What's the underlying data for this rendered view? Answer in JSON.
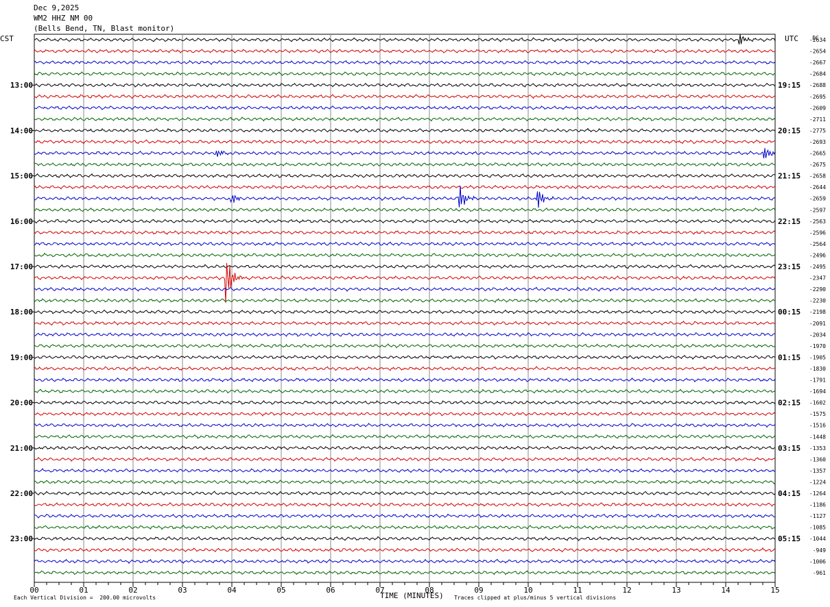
{
  "header": {
    "date": "Dec 9,2025",
    "station": "WM2 HHZ NM 00",
    "location": "(Bells Bend, TN, Blast monitor)"
  },
  "chart_data": {
    "type": "helicorder",
    "left_timezone": "CST",
    "right_timezone": "UTC",
    "right_corner_label": "DC",
    "xlabel": "TIME (MINUTES)",
    "x_ticks": [
      "00",
      "01",
      "02",
      "03",
      "04",
      "05",
      "06",
      "07",
      "08",
      "09",
      "10",
      "11",
      "12",
      "13",
      "14",
      "15"
    ],
    "xlim": [
      0,
      15
    ],
    "left_hour_labels": [
      "13:00",
      "14:00",
      "15:00",
      "16:00",
      "17:00",
      "18:00",
      "19:00",
      "20:00",
      "21:00",
      "22:00",
      "23:00"
    ],
    "right_hour_labels": [
      "19:15",
      "20:15",
      "21:15",
      "22:15",
      "23:15",
      "00:15",
      "01:15",
      "02:15",
      "03:15",
      "04:15",
      "05:15"
    ],
    "trace_colors": [
      "#000000",
      "#d40000",
      "#0000cc",
      "#006400"
    ],
    "trace_count": 48,
    "dc_offsets": [
      "-2634",
      "-2654",
      "-2667",
      "-2684",
      "-2688",
      "-2695",
      "-2609",
      "-2711",
      "-2775",
      "-2693",
      "-2665",
      "-2675",
      "-2658",
      "-2644",
      "-2659",
      "-2597",
      "-2563",
      "-2596",
      "-2564",
      "-2496",
      "-2495",
      "-2347",
      "-2290",
      "-2230",
      "-2198",
      "-2091",
      "-2034",
      "-1970",
      "-1905",
      "-1830",
      "-1791",
      "-1694",
      "-1602",
      "-1575",
      "-1516",
      "-1448",
      "-1353",
      "-1360",
      "-1357",
      "-1224",
      "-1264",
      "-1186",
      "-1127",
      "-1085",
      "-1044",
      "-949",
      "-1006",
      "-961"
    ],
    "events": [
      {
        "trace": 10,
        "minute": 3.7,
        "amplitude": 0.35
      },
      {
        "trace": 14,
        "minute": 4.0,
        "amplitude": 0.45
      },
      {
        "trace": 14,
        "minute": 8.6,
        "amplitude": 1.3
      },
      {
        "trace": 14,
        "minute": 10.2,
        "amplitude": 0.9
      },
      {
        "trace": 21,
        "minute": 3.9,
        "amplitude": 1.9
      },
      {
        "trace": 10,
        "minute": 14.8,
        "amplitude": 0.6
      },
      {
        "trace": 0,
        "minute": 14.3,
        "amplitude": 0.45
      }
    ],
    "footer_scale": "Each Vertical Division =  200.00 microvolts",
    "footer_clip": "Traces clipped at plus/minus 5 vertical divisions"
  }
}
